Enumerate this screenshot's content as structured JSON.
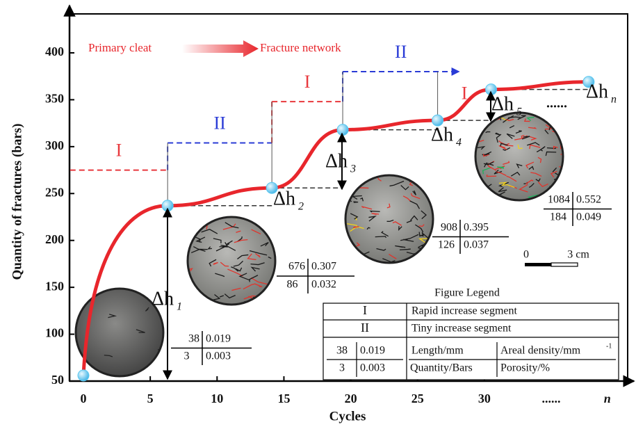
{
  "chart_data": {
    "type": "line",
    "xlabel": "Cycles",
    "ylabel": "Quantity of fractures (bars)",
    "xlim": [
      -1,
      41
    ],
    "ylim": [
      50,
      445
    ],
    "xticks": [
      0,
      5,
      10,
      15,
      20,
      25,
      30,
      {
        "value": 35,
        "label": "......"
      },
      {
        "value": 39.2,
        "label": "n"
      }
    ],
    "yticks": [
      50,
      100,
      150,
      200,
      250,
      300,
      350,
      400
    ],
    "x": [
      0,
      6.3,
      14.1,
      19.4,
      26.5,
      30.5,
      37.8
    ],
    "series": [
      {
        "color": "#e8262c",
        "values": [
          56,
          237,
          256,
          318,
          328,
          361,
          369
        ]
      }
    ],
    "marker_color": "#5bc8f0",
    "stages": [
      {
        "label": "I",
        "from": -1,
        "to": 6.3,
        "level": 275,
        "color": "#e8383d"
      },
      {
        "label": "II",
        "from": 6.3,
        "to": 14.1,
        "level": 304,
        "color": "#2a3bd6"
      },
      {
        "label": "I",
        "from": 14.1,
        "to": 19.4,
        "level": 348,
        "color": "#e8383d"
      },
      {
        "label": "II",
        "from": 19.4,
        "to": 28.1,
        "level": 380,
        "color": "#2a3bd6"
      }
    ],
    "stage_extra": {
      "label": "I",
      "x": 28.5,
      "y": 355
    },
    "increments": [
      {
        "symbol": "Δh",
        "sub": "1"
      },
      {
        "symbol": "Δh",
        "sub": "2"
      },
      {
        "symbol": "Δh",
        "sub": "3"
      },
      {
        "symbol": "Δh",
        "sub": "4"
      },
      {
        "symbol": "Δh",
        "sub": "5"
      },
      {
        "symbol": "Δh",
        "sub": "n"
      }
    ],
    "ellipsis": "......",
    "transition": {
      "from": "Primary cleat",
      "to": "Fracture network"
    },
    "samples": [
      {
        "length": 38,
        "density": 0.019,
        "bars": 3,
        "porosity": 0.003
      },
      {
        "length": 676,
        "density": 0.307,
        "bars": 86,
        "porosity": 0.032
      },
      {
        "length": 908,
        "density": 0.395,
        "bars": 126,
        "porosity": 0.037
      },
      {
        "length": 1084,
        "density": 0.552,
        "bars": 184,
        "porosity": 0.049
      }
    ],
    "scale_bar": {
      "start": "0",
      "end": "3 cm"
    },
    "legend": {
      "title": "Figure Legend",
      "rows": [
        {
          "symbol": "I",
          "text": "Rapid increase segment"
        },
        {
          "symbol": "II",
          "text": "Tiny increase segment"
        }
      ],
      "example": {
        "length": 38,
        "density": 0.019,
        "bars": 3,
        "porosity": 0.003
      },
      "keys": [
        "Length/mm",
        "Areal density/mm",
        "Quantity/Bars",
        "Porosity/%"
      ],
      "density_exponent": "-1"
    }
  }
}
